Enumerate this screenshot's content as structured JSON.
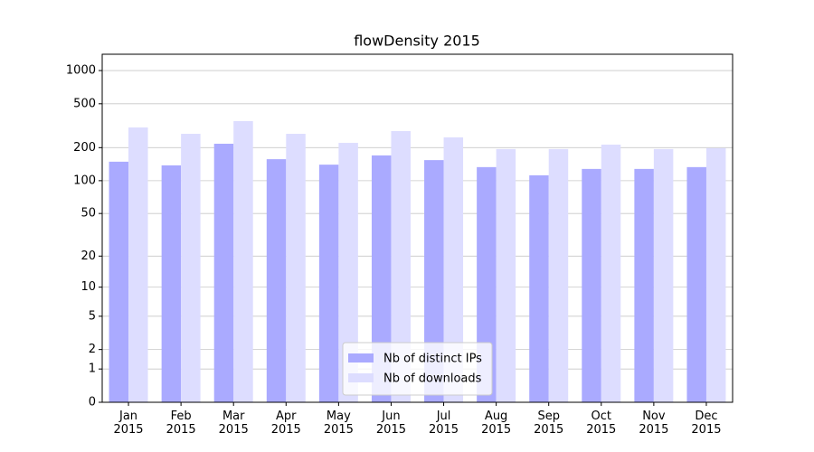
{
  "chart_data": {
    "type": "bar",
    "title": "flowDensity 2015",
    "categories": [
      "Jan\n2015",
      "Feb\n2015",
      "Mar\n2015",
      "Apr\n2015",
      "May\n2015",
      "Jun\n2015",
      "Jul\n2015",
      "Aug\n2015",
      "Sep\n2015",
      "Oct\n2015",
      "Nov\n2015",
      "Dec\n2015"
    ],
    "series": [
      {
        "name": "Nb of distinct IPs",
        "color": "#aaaaff",
        "values": [
          149,
          138,
          217,
          157,
          140,
          170,
          154,
          133,
          112,
          128,
          128,
          133
        ]
      },
      {
        "name": "Nb of downloads",
        "color": "#ddddff",
        "values": [
          305,
          267,
          348,
          267,
          221,
          283,
          248,
          194,
          194,
          213,
          194,
          198
        ]
      }
    ],
    "yscale": "log1p",
    "ylim": [
      0,
      1405
    ],
    "yticks": [
      0,
      1,
      2,
      5,
      10,
      20,
      50,
      100,
      200,
      500,
      1000
    ],
    "grid": true,
    "legend": "lower center"
  }
}
